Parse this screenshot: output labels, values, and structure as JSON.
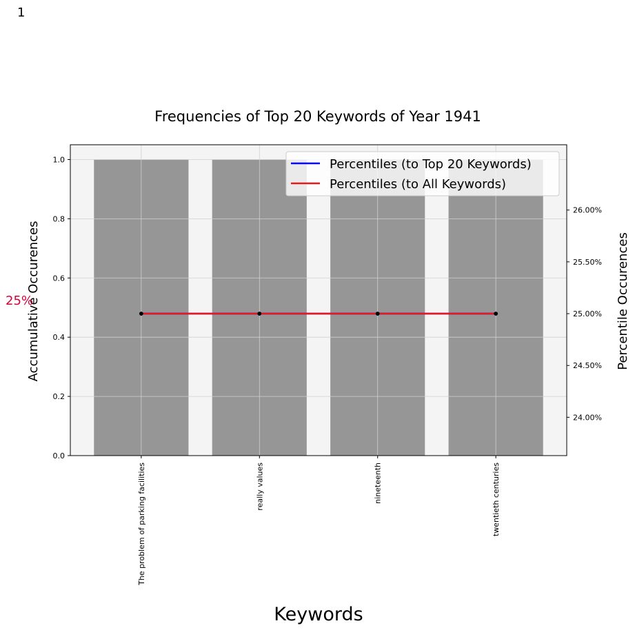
{
  "corner_label": "1",
  "annotation_left": "25%",
  "chart_data": {
    "type": "bar",
    "title": "Frequencies of Top 20 Keywords of Year 1941",
    "xlabel": "Keywords",
    "ylabel": "Accumulative Occurences",
    "y2label": "Percentile Occurences",
    "categories": [
      "The problem of parking facilities",
      "really values",
      "nineteenth",
      "twentieth centuries"
    ],
    "values": [
      1,
      1,
      1,
      1
    ],
    "ylim": [
      0,
      1.05
    ],
    "yticks": [
      0,
      0.2,
      0.4,
      0.6,
      0.8,
      1.0
    ],
    "ytick_labels": [
      "0.0",
      "0.2",
      "0.4",
      "0.6",
      "0.8",
      "1.0"
    ],
    "y2lim": [
      23.63,
      26.63
    ],
    "y2ticks": [
      24,
      24.5,
      25,
      25.5,
      26
    ],
    "y2tick_labels": [
      "24.00%",
      "24.50%",
      "25.00%",
      "25.50%",
      "26.00%"
    ],
    "grid": true,
    "legend_position": "top-right",
    "series": [
      {
        "name": "Percentiles (to Top 20 Keywords)",
        "color": "#0000ee",
        "values": [
          25,
          25,
          25,
          25
        ]
      },
      {
        "name": "Percentiles (to All Keywords)",
        "color": "#e41a1c",
        "values": [
          25,
          25,
          25,
          25
        ]
      }
    ],
    "colors": {
      "bar": "#969696",
      "plot_background": "#f4f4f4",
      "annotation": "#d6003a"
    }
  }
}
